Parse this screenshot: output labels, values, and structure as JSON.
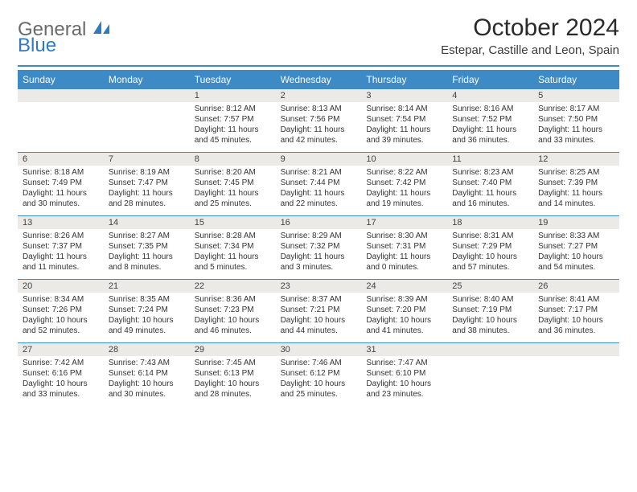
{
  "brand": {
    "word1": "General",
    "word2": "Blue"
  },
  "title": "October 2024",
  "location": "Estepar, Castille and Leon, Spain",
  "colors": {
    "header_bg": "#3c8ac6",
    "rule": "#3c8ac6",
    "week_divider": "#3c8ac6",
    "daynum_bg": "#eceae7",
    "logo_blue": "#2f7bbf",
    "logo_gray": "#6a6a6a"
  },
  "day_labels": [
    "Sunday",
    "Monday",
    "Tuesday",
    "Wednesday",
    "Thursday",
    "Friday",
    "Saturday"
  ],
  "weeks": [
    [
      {
        "n": "",
        "sunrise": "",
        "sunset": "",
        "daylight": ""
      },
      {
        "n": "",
        "sunrise": "",
        "sunset": "",
        "daylight": ""
      },
      {
        "n": "1",
        "sunrise": "Sunrise: 8:12 AM",
        "sunset": "Sunset: 7:57 PM",
        "daylight": "Daylight: 11 hours and 45 minutes."
      },
      {
        "n": "2",
        "sunrise": "Sunrise: 8:13 AM",
        "sunset": "Sunset: 7:56 PM",
        "daylight": "Daylight: 11 hours and 42 minutes."
      },
      {
        "n": "3",
        "sunrise": "Sunrise: 8:14 AM",
        "sunset": "Sunset: 7:54 PM",
        "daylight": "Daylight: 11 hours and 39 minutes."
      },
      {
        "n": "4",
        "sunrise": "Sunrise: 8:16 AM",
        "sunset": "Sunset: 7:52 PM",
        "daylight": "Daylight: 11 hours and 36 minutes."
      },
      {
        "n": "5",
        "sunrise": "Sunrise: 8:17 AM",
        "sunset": "Sunset: 7:50 PM",
        "daylight": "Daylight: 11 hours and 33 minutes."
      }
    ],
    [
      {
        "n": "6",
        "sunrise": "Sunrise: 8:18 AM",
        "sunset": "Sunset: 7:49 PM",
        "daylight": "Daylight: 11 hours and 30 minutes."
      },
      {
        "n": "7",
        "sunrise": "Sunrise: 8:19 AM",
        "sunset": "Sunset: 7:47 PM",
        "daylight": "Daylight: 11 hours and 28 minutes."
      },
      {
        "n": "8",
        "sunrise": "Sunrise: 8:20 AM",
        "sunset": "Sunset: 7:45 PM",
        "daylight": "Daylight: 11 hours and 25 minutes."
      },
      {
        "n": "9",
        "sunrise": "Sunrise: 8:21 AM",
        "sunset": "Sunset: 7:44 PM",
        "daylight": "Daylight: 11 hours and 22 minutes."
      },
      {
        "n": "10",
        "sunrise": "Sunrise: 8:22 AM",
        "sunset": "Sunset: 7:42 PM",
        "daylight": "Daylight: 11 hours and 19 minutes."
      },
      {
        "n": "11",
        "sunrise": "Sunrise: 8:23 AM",
        "sunset": "Sunset: 7:40 PM",
        "daylight": "Daylight: 11 hours and 16 minutes."
      },
      {
        "n": "12",
        "sunrise": "Sunrise: 8:25 AM",
        "sunset": "Sunset: 7:39 PM",
        "daylight": "Daylight: 11 hours and 14 minutes."
      }
    ],
    [
      {
        "n": "13",
        "sunrise": "Sunrise: 8:26 AM",
        "sunset": "Sunset: 7:37 PM",
        "daylight": "Daylight: 11 hours and 11 minutes."
      },
      {
        "n": "14",
        "sunrise": "Sunrise: 8:27 AM",
        "sunset": "Sunset: 7:35 PM",
        "daylight": "Daylight: 11 hours and 8 minutes."
      },
      {
        "n": "15",
        "sunrise": "Sunrise: 8:28 AM",
        "sunset": "Sunset: 7:34 PM",
        "daylight": "Daylight: 11 hours and 5 minutes."
      },
      {
        "n": "16",
        "sunrise": "Sunrise: 8:29 AM",
        "sunset": "Sunset: 7:32 PM",
        "daylight": "Daylight: 11 hours and 3 minutes."
      },
      {
        "n": "17",
        "sunrise": "Sunrise: 8:30 AM",
        "sunset": "Sunset: 7:31 PM",
        "daylight": "Daylight: 11 hours and 0 minutes."
      },
      {
        "n": "18",
        "sunrise": "Sunrise: 8:31 AM",
        "sunset": "Sunset: 7:29 PM",
        "daylight": "Daylight: 10 hours and 57 minutes."
      },
      {
        "n": "19",
        "sunrise": "Sunrise: 8:33 AM",
        "sunset": "Sunset: 7:27 PM",
        "daylight": "Daylight: 10 hours and 54 minutes."
      }
    ],
    [
      {
        "n": "20",
        "sunrise": "Sunrise: 8:34 AM",
        "sunset": "Sunset: 7:26 PM",
        "daylight": "Daylight: 10 hours and 52 minutes."
      },
      {
        "n": "21",
        "sunrise": "Sunrise: 8:35 AM",
        "sunset": "Sunset: 7:24 PM",
        "daylight": "Daylight: 10 hours and 49 minutes."
      },
      {
        "n": "22",
        "sunrise": "Sunrise: 8:36 AM",
        "sunset": "Sunset: 7:23 PM",
        "daylight": "Daylight: 10 hours and 46 minutes."
      },
      {
        "n": "23",
        "sunrise": "Sunrise: 8:37 AM",
        "sunset": "Sunset: 7:21 PM",
        "daylight": "Daylight: 10 hours and 44 minutes."
      },
      {
        "n": "24",
        "sunrise": "Sunrise: 8:39 AM",
        "sunset": "Sunset: 7:20 PM",
        "daylight": "Daylight: 10 hours and 41 minutes."
      },
      {
        "n": "25",
        "sunrise": "Sunrise: 8:40 AM",
        "sunset": "Sunset: 7:19 PM",
        "daylight": "Daylight: 10 hours and 38 minutes."
      },
      {
        "n": "26",
        "sunrise": "Sunrise: 8:41 AM",
        "sunset": "Sunset: 7:17 PM",
        "daylight": "Daylight: 10 hours and 36 minutes."
      }
    ],
    [
      {
        "n": "27",
        "sunrise": "Sunrise: 7:42 AM",
        "sunset": "Sunset: 6:16 PM",
        "daylight": "Daylight: 10 hours and 33 minutes."
      },
      {
        "n": "28",
        "sunrise": "Sunrise: 7:43 AM",
        "sunset": "Sunset: 6:14 PM",
        "daylight": "Daylight: 10 hours and 30 minutes."
      },
      {
        "n": "29",
        "sunrise": "Sunrise: 7:45 AM",
        "sunset": "Sunset: 6:13 PM",
        "daylight": "Daylight: 10 hours and 28 minutes."
      },
      {
        "n": "30",
        "sunrise": "Sunrise: 7:46 AM",
        "sunset": "Sunset: 6:12 PM",
        "daylight": "Daylight: 10 hours and 25 minutes."
      },
      {
        "n": "31",
        "sunrise": "Sunrise: 7:47 AM",
        "sunset": "Sunset: 6:10 PM",
        "daylight": "Daylight: 10 hours and 23 minutes."
      },
      {
        "n": "",
        "sunrise": "",
        "sunset": "",
        "daylight": ""
      },
      {
        "n": "",
        "sunrise": "",
        "sunset": "",
        "daylight": ""
      }
    ]
  ]
}
